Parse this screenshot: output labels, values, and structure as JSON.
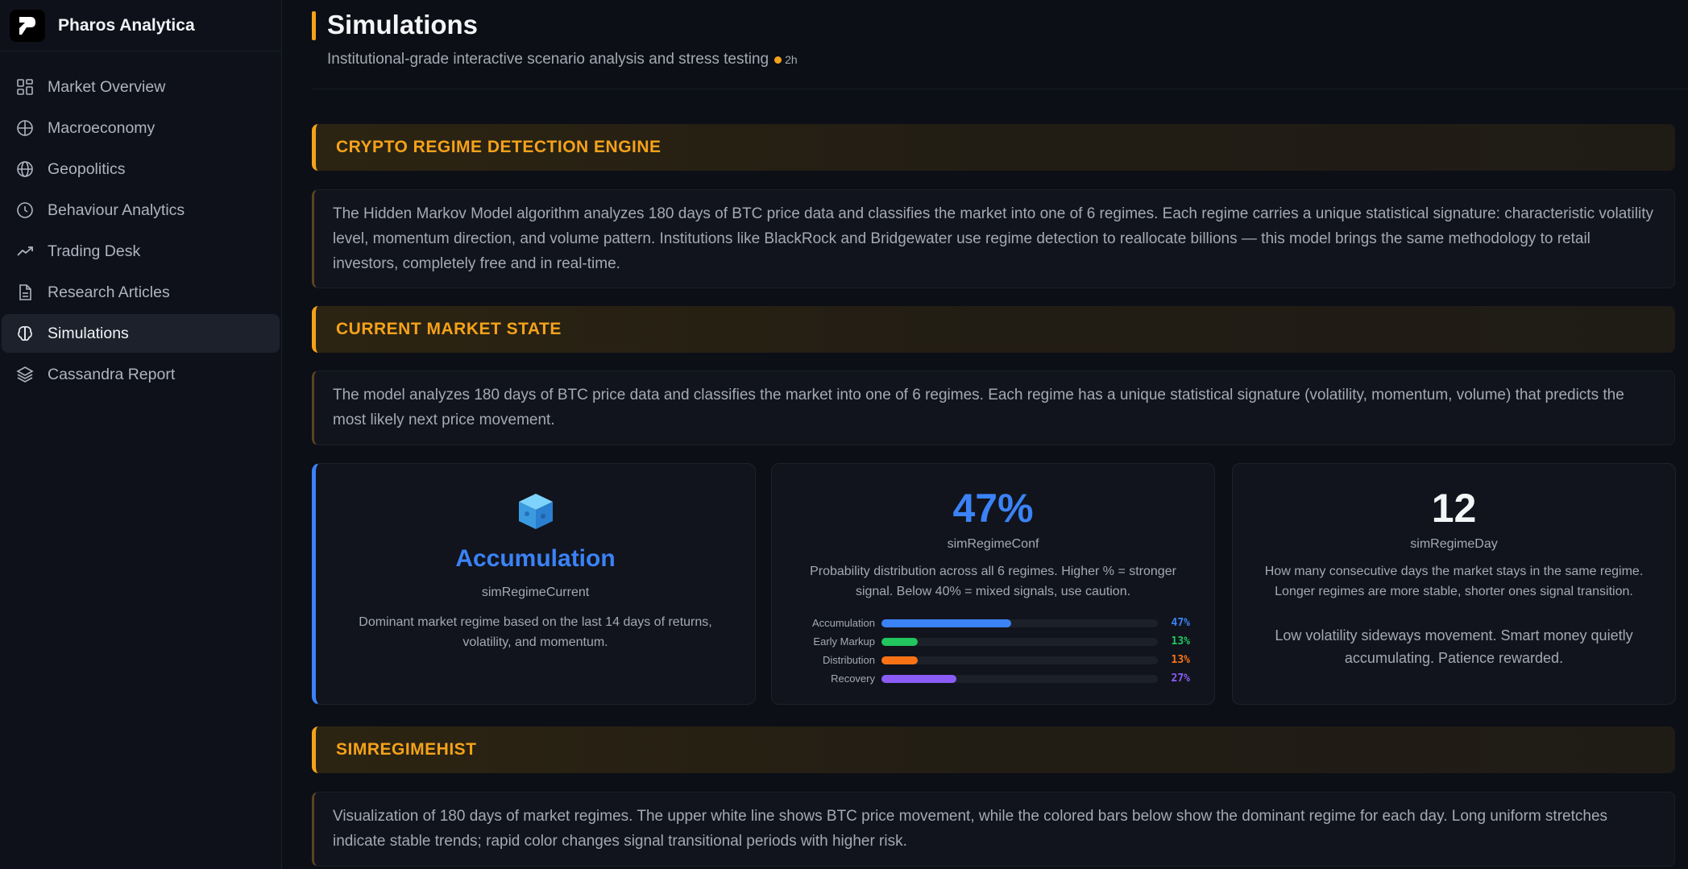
{
  "brand": {
    "name": "Pharos Analytica"
  },
  "nav": [
    {
      "label": "Market Overview",
      "icon": "grid-icon"
    },
    {
      "label": "Macroeconomy",
      "icon": "globe-grid-icon"
    },
    {
      "label": "Geopolitics",
      "icon": "globe-icon"
    },
    {
      "label": "Behaviour Analytics",
      "icon": "clock-icon"
    },
    {
      "label": "Trading Desk",
      "icon": "trend-icon"
    },
    {
      "label": "Research Articles",
      "icon": "document-icon"
    },
    {
      "label": "Simulations",
      "icon": "brain-icon",
      "active": true
    },
    {
      "label": "Cassandra Report",
      "icon": "layers-icon"
    }
  ],
  "page": {
    "title": "Simulations",
    "subtitle": "Institutional-grade interactive scenario analysis and stress testing",
    "age": "2h"
  },
  "sections": {
    "engine": {
      "title": "CRYPTO REGIME DETECTION ENGINE",
      "description": "The Hidden Markov Model algorithm analyzes 180 days of BTC price data and classifies the market into one of 6 regimes. Each regime carries a unique statistical signature: characteristic volatility level, momentum direction, and volume pattern. Institutions like BlackRock and Bridgewater use regime detection to reallocate billions — this model brings the same methodology to retail investors, completely free and in real-time."
    },
    "state": {
      "title": "CURRENT MARKET STATE",
      "description": "The model analyzes 180 days of BTC price data and classifies the market into one of 6 regimes. Each regime has a unique statistical signature (volatility, momentum, volume) that predicts the most likely next price movement."
    },
    "hist": {
      "title": "SIMREGIMEHIST",
      "description": "Visualization of 180 days of market regimes. The upper white line shows BTC price movement, while the colored bars below show the dominant regime for each day. Long uniform stretches indicate stable trends; rapid color changes signal transitional periods with higher risk."
    }
  },
  "cards": {
    "current": {
      "regime": "Accumulation",
      "key": "simRegimeCurrent",
      "text": "Dominant market regime based on the last 14 days of returns, volatility, and momentum.",
      "icon": "cube-icon"
    },
    "confidence": {
      "value": "47%",
      "key": "simRegimeConf",
      "text": "Probability distribution across all 6 regimes. Higher % = stronger signal. Below 40% = mixed signals, use caution.",
      "probabilities": [
        {
          "label": "Accumulation",
          "value": 47,
          "display": "47%",
          "color": "#3b82f6"
        },
        {
          "label": "Early Markup",
          "value": 13,
          "display": "13%",
          "color": "#22c55e"
        },
        {
          "label": "Distribution",
          "value": 13,
          "display": "13%",
          "color": "#f97316"
        },
        {
          "label": "Recovery",
          "value": 27,
          "display": "27%",
          "color": "#8b5cf6"
        }
      ]
    },
    "days": {
      "value": "12",
      "key": "simRegimeDay",
      "text": "How many consecutive days the market stays in the same regime. Longer regimes are more stable, shorter ones signal transition.",
      "note": "Low volatility sideways movement. Smart money quietly accumulating. Patience rewarded."
    }
  },
  "colors": {
    "accent": "#f5a21a",
    "blue": "#3b82f6"
  }
}
